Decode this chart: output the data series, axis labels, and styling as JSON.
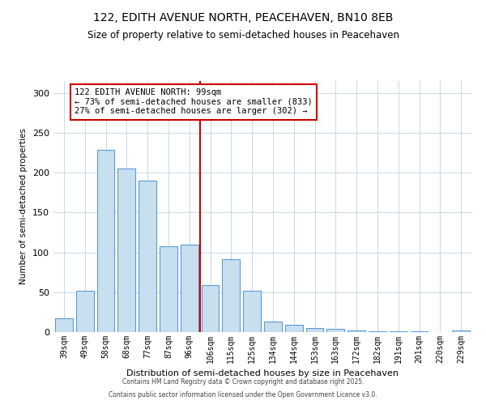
{
  "title1": "122, EDITH AVENUE NORTH, PEACEHAVEN, BN10 8EB",
  "title2": "Size of property relative to semi-detached houses in Peacehaven",
  "xlabel": "Distribution of semi-detached houses by size in Peacehaven",
  "ylabel": "Number of semi-detached properties",
  "bar_labels": [
    "39sqm",
    "49sqm",
    "58sqm",
    "68sqm",
    "77sqm",
    "87sqm",
    "96sqm",
    "106sqm",
    "115sqm",
    "125sqm",
    "134sqm",
    "144sqm",
    "153sqm",
    "163sqm",
    "172sqm",
    "182sqm",
    "191sqm",
    "201sqm",
    "220sqm",
    "229sqm"
  ],
  "bar_values": [
    17,
    52,
    229,
    205,
    190,
    108,
    110,
    59,
    91,
    52,
    13,
    9,
    5,
    4,
    2,
    1,
    1,
    1,
    0,
    2
  ],
  "bar_color": "#c8dff0",
  "bar_edge_color": "#5b9bd5",
  "reference_line_x": 6.5,
  "annotation_title": "122 EDITH AVENUE NORTH: 99sqm",
  "annotation_line1": "← 73% of semi-detached houses are smaller (833)",
  "annotation_line2": "27% of semi-detached houses are larger (302) →",
  "annotation_box_color": "#ffffff",
  "annotation_box_edge": "#cc0000",
  "reference_line_color": "#cc0000",
  "ylim": [
    0,
    315
  ],
  "yticks": [
    0,
    50,
    100,
    150,
    200,
    250,
    300
  ],
  "footer1": "Contains HM Land Registry data © Crown copyright and database right 2025.",
  "footer2": "Contains public sector information licensed under the Open Government Licence v3.0.",
  "background_color": "#ffffff",
  "grid_color": "#c8d8e8",
  "title1_fontsize": 10,
  "title2_fontsize": 8.5,
  "annotation_fontsize": 7.5,
  "xlabel_fontsize": 8,
  "ylabel_fontsize": 7.5,
  "ytick_fontsize": 8,
  "xtick_fontsize": 7,
  "footer_fontsize": 5.5
}
